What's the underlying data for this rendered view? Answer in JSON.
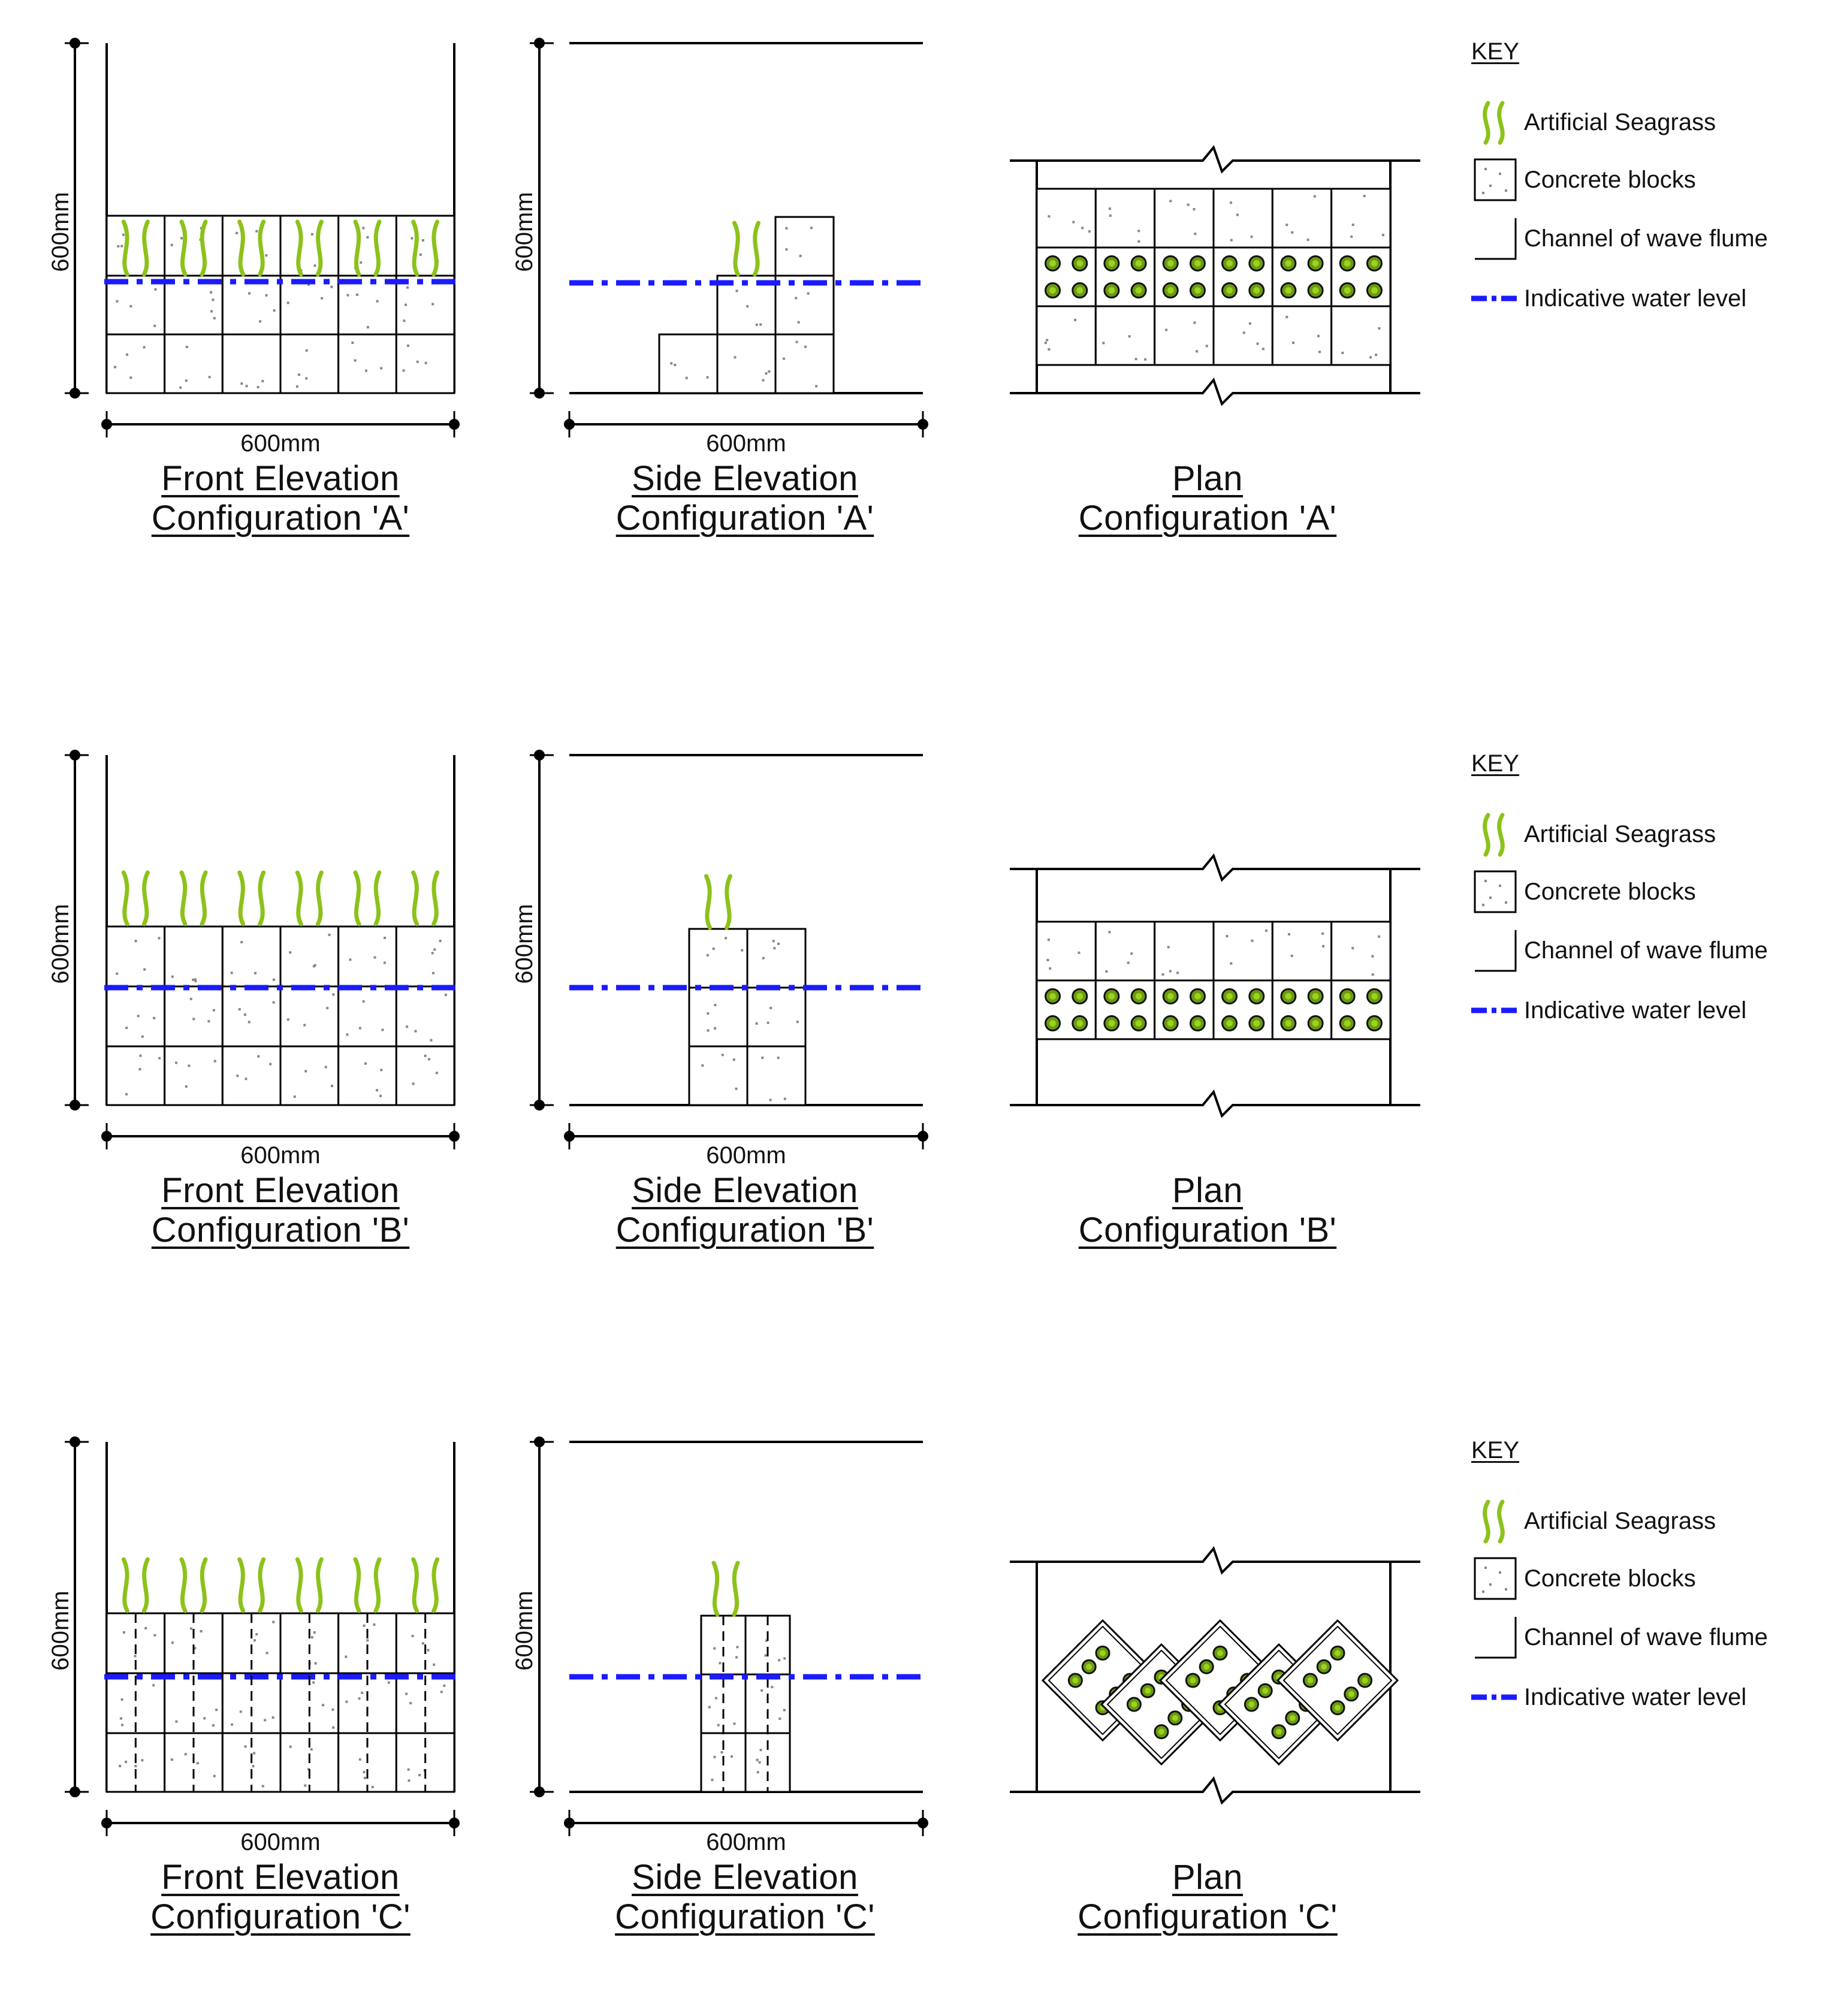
{
  "figure": {
    "configurations": [
      {
        "id": "A",
        "front_caption": [
          "Front Elevation",
          "Configuration 'A'"
        ],
        "side_caption": [
          "Side Elevation",
          "Configuration 'A'"
        ],
        "plan_caption": [
          "Plan",
          "Configuration 'A'"
        ],
        "dim_height": "600mm",
        "dim_width": "600mm"
      },
      {
        "id": "B",
        "front_caption": [
          "Front Elevation",
          "Configuration 'B'"
        ],
        "side_caption": [
          "Side Elevation",
          "Configuration 'B'"
        ],
        "plan_caption": [
          "Plan",
          "Configuration 'B'"
        ],
        "dim_height": "600mm",
        "dim_width": "600mm"
      },
      {
        "id": "C",
        "front_caption": [
          "Front Elevation",
          "Configuration 'C'"
        ],
        "side_caption": [
          "Side Elevation",
          "Configuration 'C'"
        ],
        "plan_caption": [
          "Plan",
          "Configuration 'C'"
        ],
        "dim_height": "600mm",
        "dim_width": "600mm"
      }
    ]
  },
  "key": {
    "title": "KEY",
    "items": [
      {
        "icon": "seagrass-icon",
        "label": "Artificial Seagrass"
      },
      {
        "icon": "concrete-block-icon",
        "label": "Concrete blocks"
      },
      {
        "icon": "channel-icon",
        "label": "Channel of wave flume"
      },
      {
        "icon": "water-level-icon",
        "label": "Indicative water level"
      }
    ]
  },
  "colors": {
    "seagrass": "#8cc21a",
    "water_level": "#1b1bff",
    "line": "#000000"
  }
}
